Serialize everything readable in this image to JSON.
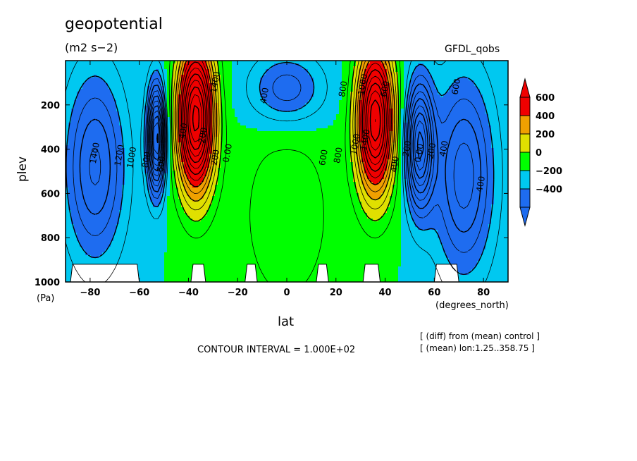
{
  "chart_data": {
    "type": "heatmap",
    "title": "geopotential",
    "subtitle": "(m2 s−2)",
    "dataset_label": "GFDL_qobs",
    "xlabel": "lat",
    "x_unit": "(degrees_north)",
    "ylabel": "plev",
    "y_unit": "(Pa)",
    "xlim": [
      -90,
      90
    ],
    "ylim": [
      1000,
      0
    ],
    "x_ticks": [
      "−80",
      "−60",
      "−40",
      "−20",
      "0",
      "20",
      "40",
      "60",
      "80"
    ],
    "y_ticks": [
      "200",
      "400",
      "600",
      "800",
      "1000"
    ],
    "contour_interval_text": "CONTOUR INTERVAL = 1.000E+02",
    "notes": [
      "[ (diff) from (mean) control ]",
      "[ (mean) lon:1.25..358.75 ]"
    ],
    "colorbar": {
      "labels": [
        "600",
        "400",
        "200",
        "0",
        "−200",
        "−400"
      ],
      "levels": [
        -400,
        -200,
        0,
        200,
        400,
        600
      ],
      "colors": [
        "#1e6cf0",
        "#00c8f0",
        "#00ff00",
        "#e0e000",
        "#f0a000",
        "#f00000"
      ]
    },
    "contour_labels": [
      "1400",
      "1200",
      "1000",
      "800",
      "600",
      "400",
      "200",
      "0.00",
      "200",
      "400",
      "600",
      "800",
      "1000",
      "1400",
      "600",
      "400",
      "200",
      "0.00",
      "200",
      "400",
      "600",
      "800",
      "1000",
      "1400",
      "400"
    ],
    "features": [
      {
        "kind": "max",
        "lat": -37,
        "plev": 250,
        "value": "> 600"
      },
      {
        "kind": "max",
        "lat": 35,
        "plev": 250,
        "value": "> 600"
      },
      {
        "kind": "min",
        "lat": -75,
        "plev": 450,
        "value": "< -400"
      },
      {
        "kind": "min",
        "lat": 70,
        "plev": 500,
        "value": "< -400"
      },
      {
        "kind": "min",
        "lat": 0,
        "plev": 150,
        "value": "< 0"
      }
    ]
  }
}
